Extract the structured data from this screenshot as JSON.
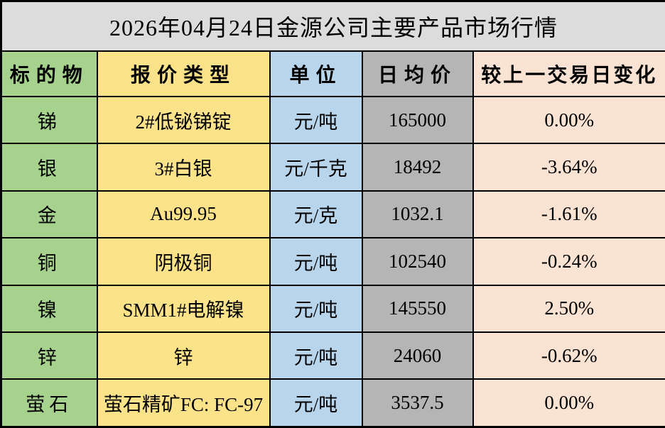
{
  "title": "2026年04月24日金源公司主要产品市场行情",
  "table": {
    "headers": [
      "标的物",
      "报价类型",
      "单位",
      "日均价",
      "较上一交易日变化"
    ],
    "rows": [
      {
        "target": "锑",
        "quote_type": "2#低铋锑锭",
        "unit": "元/吨",
        "avg_price": "165000",
        "change": "0.00%"
      },
      {
        "target": "银",
        "quote_type": "3#白银",
        "unit": "元/千克",
        "avg_price": "18492",
        "change": "-3.64%"
      },
      {
        "target": "金",
        "quote_type": "Au99.95",
        "unit": "元/克",
        "avg_price": "1032.1",
        "change": "-1.61%"
      },
      {
        "target": "铜",
        "quote_type": "阴极铜",
        "unit": "元/吨",
        "avg_price": "102540",
        "change": "-0.24%"
      },
      {
        "target": "镍",
        "quote_type": "SMM1#电解镍",
        "unit": "元/吨",
        "avg_price": "145550",
        "change": "2.50%"
      },
      {
        "target": "锌",
        "quote_type": "锌",
        "unit": "元/吨",
        "avg_price": "24060",
        "change": "-0.62%"
      },
      {
        "target": "萤石",
        "quote_type": "萤石精矿FC: FC-97",
        "unit": "元/吨",
        "avg_price": "3537.5",
        "change": "0.00%"
      }
    ]
  },
  "chart_data": {
    "type": "table",
    "title": "2026年04月24日金源公司主要产品市场行情",
    "columns": [
      "标的物",
      "报价类型",
      "单位",
      "日均价",
      "较上一交易日变化"
    ],
    "rows": [
      [
        "锑",
        "2#低铋锑锭",
        "元/吨",
        165000,
        "0.00%"
      ],
      [
        "银",
        "3#白银",
        "元/千克",
        18492,
        "-3.64%"
      ],
      [
        "金",
        "Au99.95",
        "元/克",
        1032.1,
        "-1.61%"
      ],
      [
        "铜",
        "阴极铜",
        "元/吨",
        102540,
        "-0.24%"
      ],
      [
        "镍",
        "SMM1#电解镍",
        "元/吨",
        145550,
        "2.50%"
      ],
      [
        "锌",
        "锌",
        "元/吨",
        24060,
        "-0.62%"
      ],
      [
        "萤石",
        "萤石精矿FC: FC-97",
        "元/吨",
        3537.5,
        "0.00%"
      ]
    ]
  },
  "colors": {
    "title_bg": "#dcdcdc",
    "target_bg": "#a6d28e",
    "quote_bg": "#fce289",
    "unit_bg": "#b8d5ec",
    "price_bg": "#b5b5b5",
    "change_bg": "#fbe3d4",
    "border_color": "#000000"
  }
}
